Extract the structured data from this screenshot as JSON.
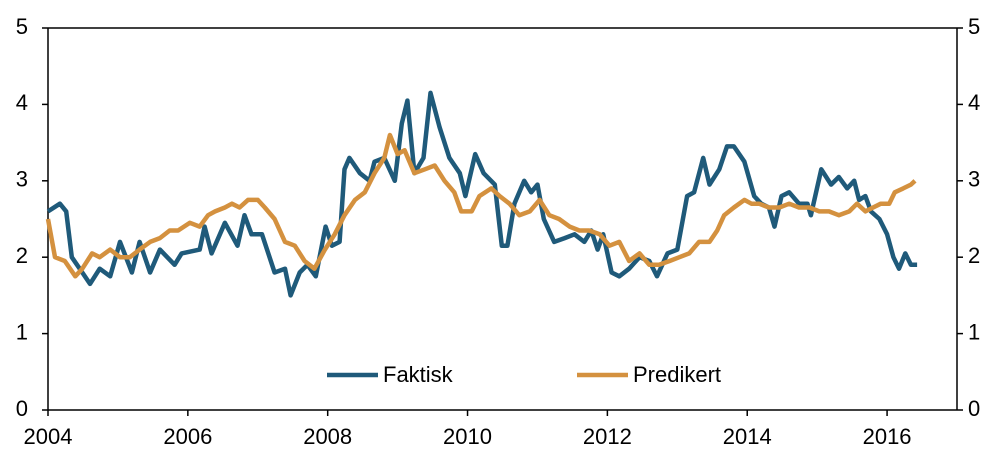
{
  "chart_data": {
    "type": "line",
    "xlim": [
      2004,
      2017
    ],
    "xticks": [
      2004,
      2006,
      2008,
      2010,
      2012,
      2014,
      2016
    ],
    "ylim": [
      0,
      5
    ],
    "yticks": [
      0,
      1,
      2,
      3,
      4,
      5
    ],
    "y2lim": [
      0,
      5
    ],
    "y2ticks": [
      0,
      1,
      2,
      3,
      4,
      5
    ],
    "series": [
      {
        "name": "Faktisk",
        "color": "#1f5a7a",
        "x": [
          2004.0,
          2004.17,
          2004.26,
          2004.34,
          2004.49,
          2004.6,
          2004.74,
          2004.89,
          2005.03,
          2005.2,
          2005.31,
          2005.46,
          2005.6,
          2005.81,
          2005.91,
          2006.17,
          2006.24,
          2006.34,
          2006.53,
          2006.71,
          2006.81,
          2006.91,
          2007.06,
          2007.24,
          2007.39,
          2007.47,
          2007.6,
          2007.71,
          2007.83,
          2007.97,
          2008.06,
          2008.17,
          2008.24,
          2008.31,
          2008.46,
          2008.6,
          2008.67,
          2008.81,
          2008.96,
          2009.06,
          2009.14,
          2009.24,
          2009.37,
          2009.47,
          2009.6,
          2009.74,
          2009.89,
          2009.97,
          2010.11,
          2010.23,
          2010.39,
          2010.49,
          2010.57,
          2010.67,
          2010.81,
          2010.91,
          2011.0,
          2011.09,
          2011.24,
          2011.39,
          2011.53,
          2011.67,
          2011.77,
          2011.86,
          2011.94,
          2012.06,
          2012.17,
          2012.31,
          2012.46,
          2012.6,
          2012.71,
          2012.86,
          2013.0,
          2013.14,
          2013.24,
          2013.37,
          2013.46,
          2013.6,
          2013.71,
          2013.81,
          2013.96,
          2014.1,
          2014.2,
          2014.31,
          2014.39,
          2014.49,
          2014.6,
          2014.74,
          2014.86,
          2014.91,
          2015.06,
          2015.2,
          2015.31,
          2015.43,
          2015.53,
          2015.6,
          2015.69,
          2015.77,
          2015.89,
          2016.0,
          2016.09,
          2016.17,
          2016.26,
          2016.34,
          2016.43
        ],
        "values": [
          2.6,
          2.7,
          2.6,
          2.0,
          1.8,
          1.65,
          1.85,
          1.75,
          2.2,
          1.8,
          2.2,
          1.8,
          2.1,
          1.9,
          2.05,
          2.1,
          2.4,
          2.05,
          2.45,
          2.15,
          2.55,
          2.3,
          2.3,
          1.8,
          1.85,
          1.5,
          1.8,
          1.9,
          1.75,
          2.4,
          2.15,
          2.2,
          3.15,
          3.3,
          3.1,
          3.0,
          3.25,
          3.3,
          3.0,
          3.75,
          4.05,
          3.1,
          3.3,
          4.15,
          3.7,
          3.3,
          3.1,
          2.8,
          3.35,
          3.1,
          2.95,
          2.15,
          2.15,
          2.7,
          3.0,
          2.85,
          2.95,
          2.5,
          2.2,
          2.25,
          2.3,
          2.2,
          2.35,
          2.1,
          2.3,
          1.8,
          1.75,
          1.85,
          2.0,
          1.95,
          1.75,
          2.05,
          2.1,
          2.8,
          2.85,
          3.3,
          2.95,
          3.15,
          3.45,
          3.45,
          3.25,
          2.8,
          2.7,
          2.65,
          2.4,
          2.8,
          2.85,
          2.7,
          2.7,
          2.55,
          3.15,
          2.95,
          3.05,
          2.9,
          3.0,
          2.75,
          2.8,
          2.6,
          2.5,
          2.3,
          2.0,
          1.85,
          2.05,
          1.9,
          1.9
        ]
      },
      {
        "name": "Predikert",
        "color": "#d4913f",
        "x": [
          2004.0,
          2004.1,
          2004.24,
          2004.39,
          2004.49,
          2004.63,
          2004.74,
          2004.89,
          2005.03,
          2005.17,
          2005.31,
          2005.46,
          2005.6,
          2005.74,
          2005.86,
          2006.03,
          2006.17,
          2006.29,
          2006.39,
          2006.53,
          2006.63,
          2006.74,
          2006.86,
          2007.0,
          2007.1,
          2007.24,
          2007.39,
          2007.53,
          2007.67,
          2007.81,
          2007.96,
          2008.1,
          2008.24,
          2008.39,
          2008.53,
          2008.67,
          2008.81,
          2008.89,
          2009.0,
          2009.1,
          2009.24,
          2009.39,
          2009.53,
          2009.67,
          2009.81,
          2009.91,
          2010.06,
          2010.17,
          2010.34,
          2010.46,
          2010.6,
          2010.74,
          2010.89,
          2011.03,
          2011.17,
          2011.31,
          2011.46,
          2011.6,
          2011.74,
          2011.89,
          2012.03,
          2012.17,
          2012.31,
          2012.46,
          2012.6,
          2012.74,
          2012.89,
          2013.03,
          2013.17,
          2013.31,
          2013.46,
          2013.57,
          2013.67,
          2013.81,
          2013.96,
          2014.06,
          2014.17,
          2014.31,
          2014.46,
          2014.6,
          2014.74,
          2014.89,
          2015.03,
          2015.17,
          2015.31,
          2015.46,
          2015.57,
          2015.69,
          2015.8,
          2015.91,
          2016.03,
          2016.11,
          2016.23,
          2016.34,
          2016.4
        ],
        "values": [
          2.5,
          2.0,
          1.95,
          1.75,
          1.85,
          2.05,
          2.0,
          2.1,
          2.0,
          2.0,
          2.1,
          2.2,
          2.25,
          2.35,
          2.35,
          2.45,
          2.4,
          2.55,
          2.6,
          2.65,
          2.7,
          2.65,
          2.75,
          2.75,
          2.65,
          2.5,
          2.2,
          2.15,
          1.95,
          1.85,
          2.1,
          2.3,
          2.55,
          2.75,
          2.85,
          3.1,
          3.3,
          3.6,
          3.35,
          3.4,
          3.1,
          3.15,
          3.2,
          3.0,
          2.85,
          2.6,
          2.6,
          2.8,
          2.9,
          2.8,
          2.7,
          2.55,
          2.6,
          2.75,
          2.55,
          2.5,
          2.4,
          2.35,
          2.35,
          2.3,
          2.15,
          2.2,
          1.95,
          2.05,
          1.9,
          1.9,
          1.95,
          2.0,
          2.05,
          2.2,
          2.2,
          2.35,
          2.55,
          2.65,
          2.75,
          2.7,
          2.7,
          2.65,
          2.65,
          2.7,
          2.65,
          2.65,
          2.6,
          2.6,
          2.55,
          2.6,
          2.7,
          2.6,
          2.65,
          2.7,
          2.7,
          2.85,
          2.9,
          2.95,
          3.0
        ]
      }
    ]
  }
}
